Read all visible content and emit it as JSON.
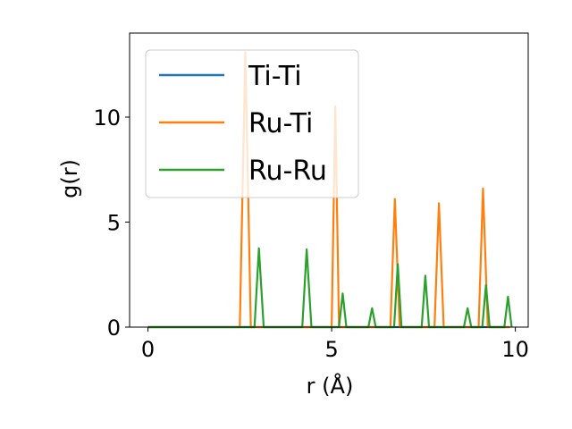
{
  "chart_data": {
    "type": "line",
    "title": "",
    "xlabel": "r (Å)",
    "ylabel": "g(r)",
    "xlim": [
      -0.5,
      10.35
    ],
    "ylim": [
      0,
      14
    ],
    "xticks": [
      0,
      5,
      10
    ],
    "yticks": [
      0,
      5,
      10
    ],
    "grid": false,
    "legend_position": "top-left",
    "series": [
      {
        "name": "Ti-Ti",
        "color": "#1f77b4",
        "points": [
          [
            0,
            0
          ],
          [
            9.85,
            0
          ]
        ]
      },
      {
        "name": "Ru-Ti",
        "color": "#ff7f0e",
        "points": [
          [
            0,
            0
          ],
          [
            2.5,
            0
          ],
          [
            2.65,
            13.1
          ],
          [
            2.8,
            0
          ],
          [
            5.0,
            0
          ],
          [
            5.1,
            10.5
          ],
          [
            5.2,
            0
          ],
          [
            6.6,
            0
          ],
          [
            6.72,
            6.1
          ],
          [
            6.85,
            0
          ],
          [
            7.8,
            0
          ],
          [
            7.92,
            5.9
          ],
          [
            8.05,
            0
          ],
          [
            9.0,
            0
          ],
          [
            9.12,
            6.6
          ],
          [
            9.25,
            0
          ],
          [
            9.85,
            0
          ]
        ]
      },
      {
        "name": "Ru-Ru",
        "color": "#2ca02c",
        "points": [
          [
            0,
            0
          ],
          [
            2.9,
            0
          ],
          [
            3.02,
            3.75
          ],
          [
            3.15,
            0
          ],
          [
            4.2,
            0
          ],
          [
            4.32,
            3.7
          ],
          [
            4.45,
            0
          ],
          [
            5.2,
            0
          ],
          [
            5.3,
            1.6
          ],
          [
            5.4,
            0
          ],
          [
            6.0,
            0
          ],
          [
            6.1,
            0.9
          ],
          [
            6.2,
            0
          ],
          [
            6.7,
            0
          ],
          [
            6.8,
            3.0
          ],
          [
            6.9,
            0
          ],
          [
            7.45,
            0
          ],
          [
            7.55,
            2.45
          ],
          [
            7.65,
            0
          ],
          [
            8.6,
            0
          ],
          [
            8.7,
            0.9
          ],
          [
            8.8,
            0
          ],
          [
            9.1,
            0
          ],
          [
            9.2,
            2.0
          ],
          [
            9.3,
            0
          ],
          [
            9.7,
            0
          ],
          [
            9.8,
            1.45
          ],
          [
            9.9,
            0
          ]
        ]
      }
    ]
  }
}
